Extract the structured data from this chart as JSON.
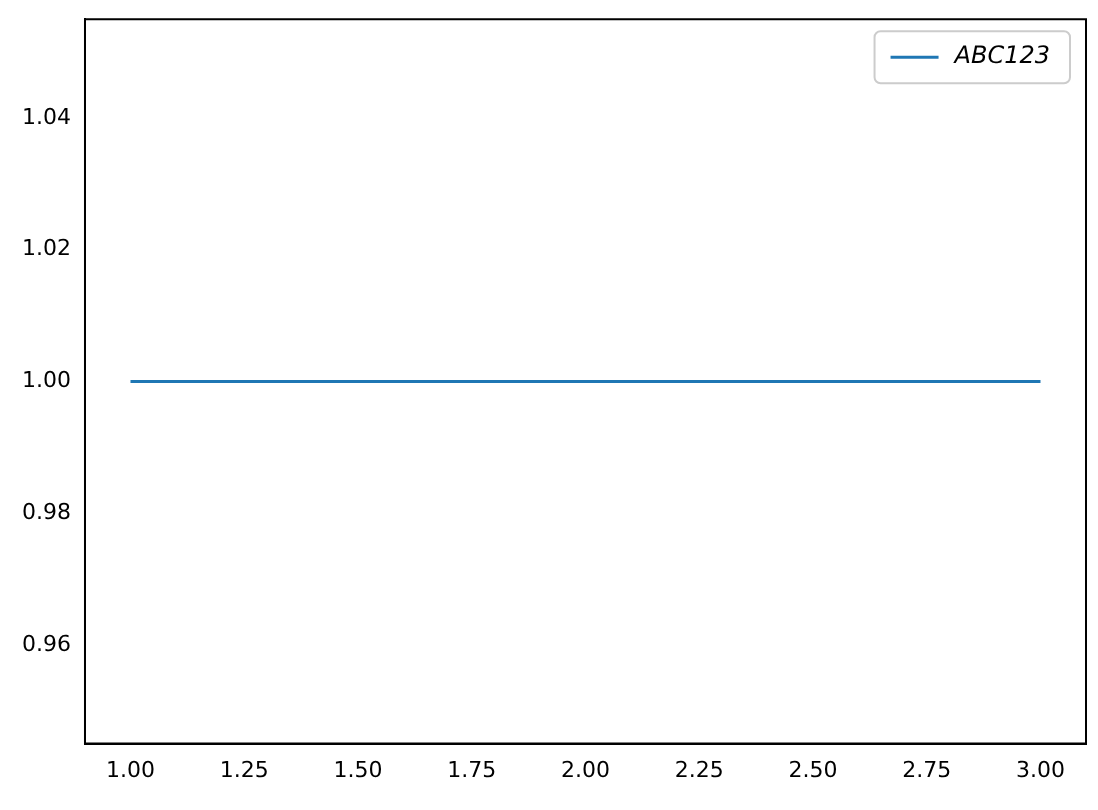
{
  "chart_data": {
    "type": "line",
    "x": [
      1,
      3
    ],
    "series": [
      {
        "name": "ABC123",
        "color": "#1f77b4",
        "values": [
          1,
          1
        ]
      }
    ],
    "xlim": [
      0.9,
      3.1
    ],
    "ylim": [
      0.945,
      1.055
    ],
    "xticks": [
      {
        "value": 1,
        "label": "1.00"
      },
      {
        "value": 1.25,
        "label": "1.25"
      },
      {
        "value": 1.5,
        "label": "1.50"
      },
      {
        "value": 1.75,
        "label": "1.75"
      },
      {
        "value": 2,
        "label": "2.00"
      },
      {
        "value": 2.25,
        "label": "2.25"
      },
      {
        "value": 2.5,
        "label": "2.50"
      },
      {
        "value": 2.75,
        "label": "2.75"
      },
      {
        "value": 3,
        "label": "3.00"
      }
    ],
    "yticks": [
      {
        "value": 0.96,
        "label": "0.96"
      },
      {
        "value": 0.98,
        "label": "0.98"
      },
      {
        "value": 1,
        "label": "1.00"
      },
      {
        "value": 1.02,
        "label": "1.02"
      },
      {
        "value": 1.04,
        "label": "1.04"
      }
    ],
    "grid": false,
    "legend": "top right",
    "marker": "none",
    "line_style": "solid"
  }
}
